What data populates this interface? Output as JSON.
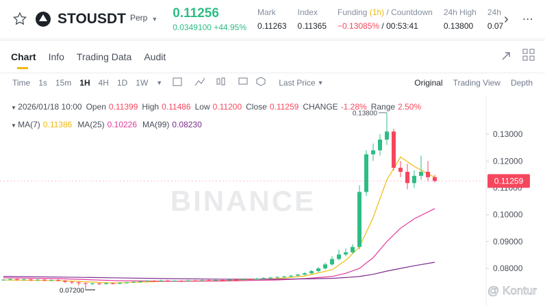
{
  "header": {
    "symbol": "STOUSDT",
    "badge": "Perp",
    "price": "0.11256",
    "change": "0.0349100 +44.95%",
    "stats": [
      {
        "label": "Mark",
        "value": "0.11263"
      },
      {
        "label": "Index",
        "value": "0.11365"
      },
      {
        "label": "Funding",
        "label_note": "(1h)",
        "label_extra": "/ Countdown",
        "value": "−0.13085%",
        "value_extra": "/ 00:53:41"
      },
      {
        "label": "24h High",
        "value": "0.13800"
      },
      {
        "label": "24h",
        "value": "0.07"
      }
    ]
  },
  "tabs": [
    "Chart",
    "Info",
    "Trading Data",
    "Audit"
  ],
  "toolbar": {
    "intervals": [
      "Time",
      "1s",
      "15m",
      "1H",
      "4H",
      "1D",
      "1W"
    ],
    "price_type": "Last Price",
    "views": [
      "Original",
      "Trading View",
      "Depth"
    ]
  },
  "legend": {
    "time": "2026/01/18 10:00",
    "items": [
      {
        "label": "Open",
        "value": "0.11399"
      },
      {
        "label": "High",
        "value": "0.11486"
      },
      {
        "label": "Low",
        "value": "0.11200"
      },
      {
        "label": "Close",
        "value": "0.11259"
      },
      {
        "label": "CHANGE",
        "value": "-1.28%"
      },
      {
        "label": "Range",
        "value": "2.50%"
      }
    ]
  },
  "watermark": "BINANCE",
  "credit": "@ Kontur",
  "chart_data": {
    "type": "candlestick",
    "ylim": [
      0.066,
      0.1443
    ],
    "yticks": [
      {
        "value": 0.08,
        "label": "0.08000"
      },
      {
        "value": 0.09,
        "label": "0.09000"
      },
      {
        "value": 0.1,
        "label": "0.10000"
      },
      {
        "value": 0.11,
        "label": "0.11000"
      },
      {
        "value": 0.12,
        "label": "0.12000"
      },
      {
        "value": 0.13,
        "label": "0.13000"
      }
    ],
    "last_price": {
      "value": 0.11259,
      "label": "0.11259"
    },
    "high_label": "0.13800",
    "low_label": "0.07200",
    "up_color": "#2ebd85",
    "down_color": "#f6465d",
    "open": [
      0.0757,
      0.0758,
      0.076,
      0.0757,
      0.0759,
      0.0756,
      0.0758,
      0.0755,
      0.0757,
      0.0754,
      0.075,
      0.0748,
      0.0745,
      0.0743,
      0.0744,
      0.0742,
      0.0745,
      0.0743,
      0.0746,
      0.0748,
      0.075,
      0.0752,
      0.0754,
      0.0752,
      0.0755,
      0.0753,
      0.0754,
      0.0752,
      0.0755,
      0.0754,
      0.0756,
      0.0755,
      0.0757,
      0.0756,
      0.0758,
      0.0757,
      0.076,
      0.0759,
      0.0762,
      0.0764,
      0.0766,
      0.0768,
      0.077,
      0.0773,
      0.0777,
      0.0782,
      0.079,
      0.08,
      0.0815,
      0.0835,
      0.0852,
      0.086,
      0.088,
      0.1085,
      0.1225,
      0.124,
      0.128,
      0.131,
      0.1175,
      0.116,
      0.1118,
      0.1145,
      0.116,
      0.11399
    ],
    "high": [
      0.0761,
      0.0763,
      0.0763,
      0.0762,
      0.0762,
      0.0761,
      0.0761,
      0.076,
      0.076,
      0.0757,
      0.0753,
      0.0751,
      0.0748,
      0.0747,
      0.0747,
      0.0748,
      0.0748,
      0.0749,
      0.0751,
      0.0753,
      0.0755,
      0.0757,
      0.0757,
      0.0758,
      0.0758,
      0.0757,
      0.0757,
      0.0758,
      0.0758,
      0.0759,
      0.0759,
      0.076,
      0.076,
      0.0761,
      0.0761,
      0.0763,
      0.0763,
      0.0765,
      0.0767,
      0.0769,
      0.0771,
      0.0773,
      0.0776,
      0.078,
      0.0786,
      0.0795,
      0.0806,
      0.0822,
      0.0845,
      0.087,
      0.0875,
      0.089,
      0.111,
      0.124,
      0.1265,
      0.13,
      0.138,
      0.132,
      0.12,
      0.119,
      0.1165,
      0.122,
      0.12,
      0.11486
    ],
    "low": [
      0.0754,
      0.0755,
      0.0754,
      0.0754,
      0.0753,
      0.0753,
      0.0752,
      0.0752,
      0.0751,
      0.0745,
      0.0742,
      0.0736,
      0.072,
      0.0739,
      0.0738,
      0.0739,
      0.074,
      0.0741,
      0.0743,
      0.0745,
      0.0747,
      0.0749,
      0.0749,
      0.075,
      0.075,
      0.075,
      0.0749,
      0.075,
      0.0751,
      0.0751,
      0.0752,
      0.0752,
      0.0753,
      0.0753,
      0.0754,
      0.0754,
      0.0756,
      0.0756,
      0.0759,
      0.0761,
      0.0763,
      0.0765,
      0.0767,
      0.077,
      0.0774,
      0.0779,
      0.0786,
      0.0796,
      0.081,
      0.083,
      0.0845,
      0.0855,
      0.087,
      0.107,
      0.12,
      0.122,
      0.126,
      0.1165,
      0.114,
      0.1095,
      0.11,
      0.113,
      0.1125,
      0.112
    ],
    "close": [
      0.0758,
      0.076,
      0.0757,
      0.0759,
      0.0756,
      0.0758,
      0.0755,
      0.0757,
      0.0754,
      0.075,
      0.0748,
      0.0745,
      0.0743,
      0.0744,
      0.0742,
      0.0745,
      0.0743,
      0.0746,
      0.0748,
      0.075,
      0.0752,
      0.0754,
      0.0752,
      0.0755,
      0.0753,
      0.0754,
      0.0752,
      0.0755,
      0.0754,
      0.0756,
      0.0755,
      0.0757,
      0.0756,
      0.0758,
      0.0757,
      0.076,
      0.0759,
      0.0762,
      0.0764,
      0.0766,
      0.0768,
      0.077,
      0.0773,
      0.0777,
      0.0782,
      0.079,
      0.08,
      0.0815,
      0.0835,
      0.0852,
      0.086,
      0.088,
      0.1085,
      0.1225,
      0.124,
      0.128,
      0.131,
      0.1175,
      0.116,
      0.1118,
      0.1145,
      0.116,
      0.11399,
      0.11259
    ],
    "ma_x": [
      0,
      8,
      16,
      24,
      32,
      40,
      44,
      48,
      50,
      52,
      54,
      56,
      58,
      60,
      63
    ],
    "ma": [
      {
        "name": "MA(7)",
        "value_label": "0.11386",
        "color": "#f0b90b",
        "values": [
          0.0757,
          0.0755,
          0.0746,
          0.0752,
          0.0755,
          0.0762,
          0.0772,
          0.0795,
          0.083,
          0.088,
          0.099,
          0.113,
          0.1215,
          0.118,
          0.1139
        ]
      },
      {
        "name": "MA(25)",
        "value_label": "0.10226",
        "color": "#e0389b",
        "values": [
          0.0765,
          0.0762,
          0.0755,
          0.0752,
          0.0753,
          0.0757,
          0.0762,
          0.077,
          0.0782,
          0.08,
          0.084,
          0.09,
          0.095,
          0.0985,
          0.1023
        ]
      },
      {
        "name": "MA(99)",
        "value_label": "0.08230",
        "color": "#7b2a8c",
        "values": [
          0.077,
          0.0768,
          0.0765,
          0.0762,
          0.076,
          0.076,
          0.0761,
          0.0763,
          0.0766,
          0.077,
          0.0778,
          0.079,
          0.08,
          0.081,
          0.0823
        ]
      }
    ]
  }
}
